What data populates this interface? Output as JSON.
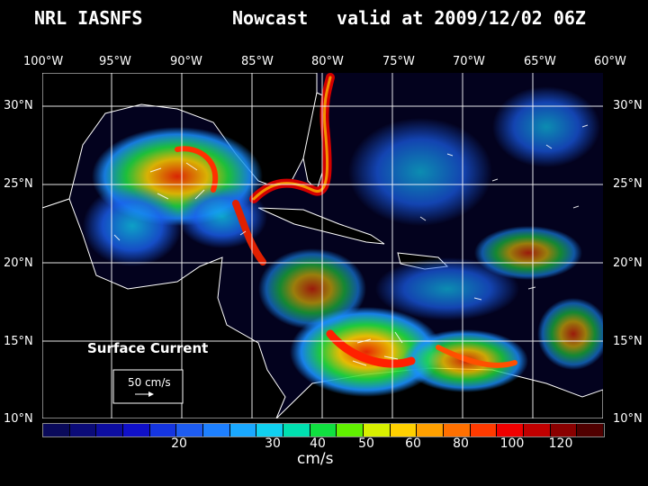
{
  "title": {
    "left": "NRL IASNFS",
    "middle": "Nowcast",
    "right": "valid at 2009/12/02 06Z"
  },
  "longitudes": [
    "100°W",
    "95°W",
    "90°W",
    "85°W",
    "80°W",
    "75°W",
    "70°W",
    "65°W",
    "60°W"
  ],
  "latitudes": [
    "30°N",
    "25°N",
    "20°N",
    "15°N",
    "10°N"
  ],
  "map": {
    "legend_title": "Surface Current",
    "scale_label": "50 cm/s",
    "ocean_color": "#03021e",
    "land_color": "#000000",
    "coast_color": "#ffffff"
  },
  "colorbar": {
    "colors": [
      "#0a0a5a",
      "#0b0b78",
      "#0d0da0",
      "#1010c8",
      "#1535e0",
      "#1e5cf0",
      "#1e80ff",
      "#1aa8ff",
      "#10d0f0",
      "#00e0b0",
      "#10e040",
      "#60f000",
      "#d8f000",
      "#ffd000",
      "#ffa000",
      "#ff7000",
      "#ff3a00",
      "#f00000",
      "#c00000",
      "#8a0000",
      "#500000"
    ],
    "tick_labels": [
      "20",
      "30",
      "40",
      "50",
      "60",
      "80",
      "100",
      "120"
    ],
    "unit": "cm/s"
  }
}
